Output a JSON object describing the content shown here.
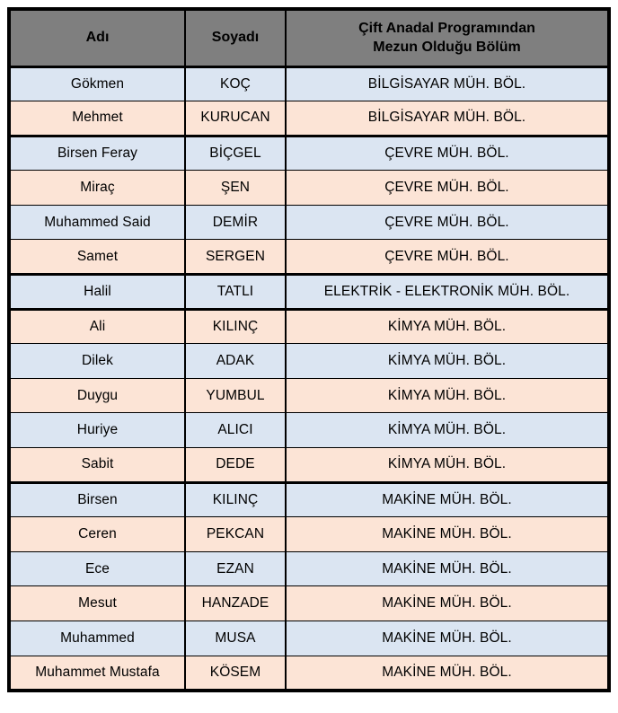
{
  "colors": {
    "header_bg": "#7f7f7f",
    "row_blue": "#dbe5f2",
    "row_peach": "#fce4d6",
    "border": "#000000"
  },
  "table": {
    "columns": [
      {
        "key": "name",
        "label": "Adı"
      },
      {
        "key": "surname",
        "label": "Soyadı"
      },
      {
        "key": "dept",
        "label": "Çift Anadal Programından Mezun Olduğu Bölüm"
      }
    ],
    "rows": [
      {
        "name": "Gökmen",
        "surname": "KOÇ",
        "dept": "BİLGİSAYAR MÜH. BÖL.",
        "shade": "blue",
        "group_start": false
      },
      {
        "name": "Mehmet",
        "surname": "KURUCAN",
        "dept": "BİLGİSAYAR MÜH. BÖL.",
        "shade": "peach",
        "group_start": false
      },
      {
        "name": "Birsen Feray",
        "surname": "BİÇGEL",
        "dept": "ÇEVRE MÜH. BÖL.",
        "shade": "blue",
        "group_start": true
      },
      {
        "name": "Miraç",
        "surname": "ŞEN",
        "dept": "ÇEVRE MÜH. BÖL.",
        "shade": "peach",
        "group_start": false
      },
      {
        "name": "Muhammed Said",
        "surname": "DEMİR",
        "dept": "ÇEVRE MÜH. BÖL.",
        "shade": "blue",
        "group_start": false
      },
      {
        "name": "Samet",
        "surname": "SERGEN",
        "dept": "ÇEVRE MÜH. BÖL.",
        "shade": "peach",
        "group_start": false
      },
      {
        "name": "Halil",
        "surname": "TATLI",
        "dept": "ELEKTRİK - ELEKTRONİK MÜH. BÖL.",
        "shade": "blue",
        "group_start": true
      },
      {
        "name": "Ali",
        "surname": "KILINÇ",
        "dept": "KİMYA MÜH. BÖL.",
        "shade": "peach",
        "group_start": true
      },
      {
        "name": "Dilek",
        "surname": "ADAK",
        "dept": "KİMYA MÜH. BÖL.",
        "shade": "blue",
        "group_start": false
      },
      {
        "name": "Duygu",
        "surname": "YUMBUL",
        "dept": "KİMYA MÜH. BÖL.",
        "shade": "peach",
        "group_start": false
      },
      {
        "name": "Huriye",
        "surname": "ALICI",
        "dept": "KİMYA MÜH. BÖL.",
        "shade": "blue",
        "group_start": false
      },
      {
        "name": "Sabit",
        "surname": "DEDE",
        "dept": "KİMYA MÜH. BÖL.",
        "shade": "peach",
        "group_start": false
      },
      {
        "name": "Birsen",
        "surname": "KILINÇ",
        "dept": "MAKİNE MÜH. BÖL.",
        "shade": "blue",
        "group_start": true
      },
      {
        "name": "Ceren",
        "surname": "PEKCAN",
        "dept": "MAKİNE MÜH. BÖL.",
        "shade": "peach",
        "group_start": false
      },
      {
        "name": "Ece",
        "surname": "EZAN",
        "dept": "MAKİNE MÜH. BÖL.",
        "shade": "blue",
        "group_start": false
      },
      {
        "name": "Mesut",
        "surname": "HANZADE",
        "dept": "MAKİNE MÜH. BÖL.",
        "shade": "peach",
        "group_start": false
      },
      {
        "name": "Muhammed",
        "surname": "MUSA",
        "dept": "MAKİNE MÜH. BÖL.",
        "shade": "blue",
        "group_start": false
      },
      {
        "name": "Muhammet Mustafa",
        "surname": "KÖSEM",
        "dept": "MAKİNE MÜH. BÖL.",
        "shade": "peach",
        "group_start": false
      }
    ]
  }
}
